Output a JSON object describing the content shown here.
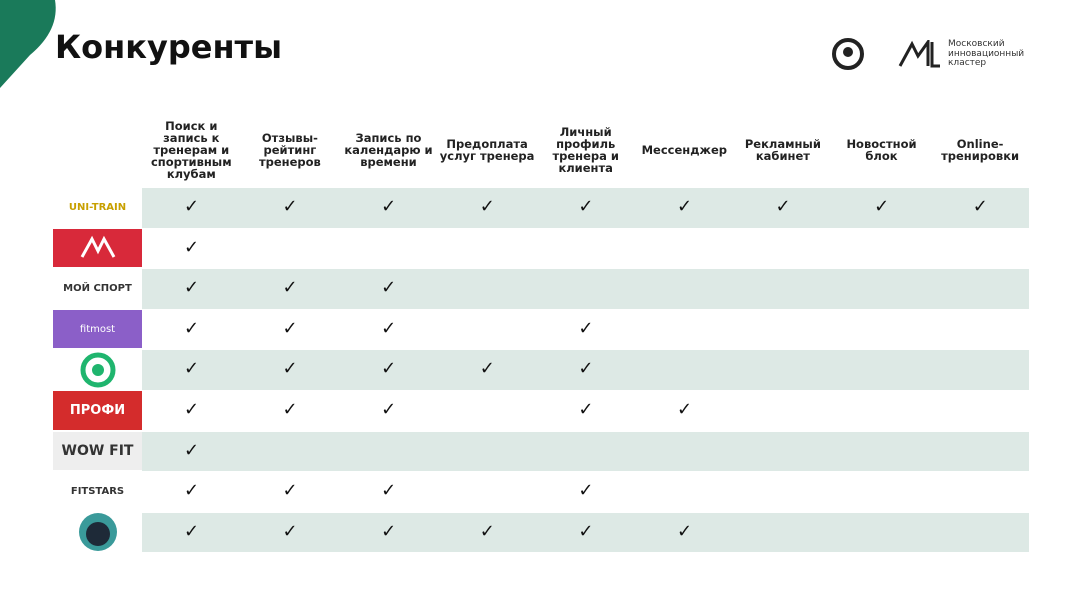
{
  "header": {
    "title": "Конкуренты",
    "partner": "Московский инновационный кластер"
  },
  "table": {
    "columns": [
      "Поиск и запись к тренерам и спортивным клубам",
      "Отзывы-рейтинг тренеров",
      "Запись по календарю и времени",
      "Предоплата услуг тренера",
      "Личный профиль тренера и клиента",
      "Мессенджер",
      "Рекламный кабинет",
      "Новостной блок",
      "Online-тренировки"
    ],
    "rows": [
      {
        "logo": "UNI-TRAIN",
        "cells": [
          "✓",
          "✓",
          "✓",
          "✓",
          "✓",
          "✓",
          "✓",
          "✓",
          "✓"
        ]
      },
      {
        "logo": null,
        "cells": [
          "✓",
          null,
          null,
          null,
          null,
          null,
          null,
          null,
          null
        ]
      },
      {
        "logo": "МОЙ СПОРТ",
        "cells": [
          "✓",
          "✓",
          "✓",
          null,
          null,
          null,
          null,
          null,
          null
        ]
      },
      {
        "logo": "fitmost",
        "cells": [
          "✓",
          "✓",
          "✓",
          null,
          "✓",
          null,
          null,
          null,
          null
        ]
      },
      {
        "logo": null,
        "cells": [
          "✓",
          "✓",
          "✓",
          "✓",
          "✓",
          null,
          null,
          null,
          null
        ]
      },
      {
        "logo": "ПРОФИ",
        "cells": [
          "✓",
          "✓",
          "✓",
          null,
          "✓",
          "✓",
          null,
          null,
          null
        ]
      },
      {
        "logo": "WOW FIT",
        "cells": [
          "✓",
          null,
          null,
          null,
          null,
          null,
          null,
          null,
          null
        ]
      },
      {
        "logo": "FITSTARS",
        "cells": [
          "✓",
          "✓",
          "✓",
          null,
          "✓",
          null,
          null,
          null,
          null
        ]
      },
      {
        "logo": null,
        "cells": [
          "✓",
          "✓",
          "✓",
          "✓",
          "✓",
          "✓",
          null,
          null,
          null
        ]
      }
    ]
  }
}
